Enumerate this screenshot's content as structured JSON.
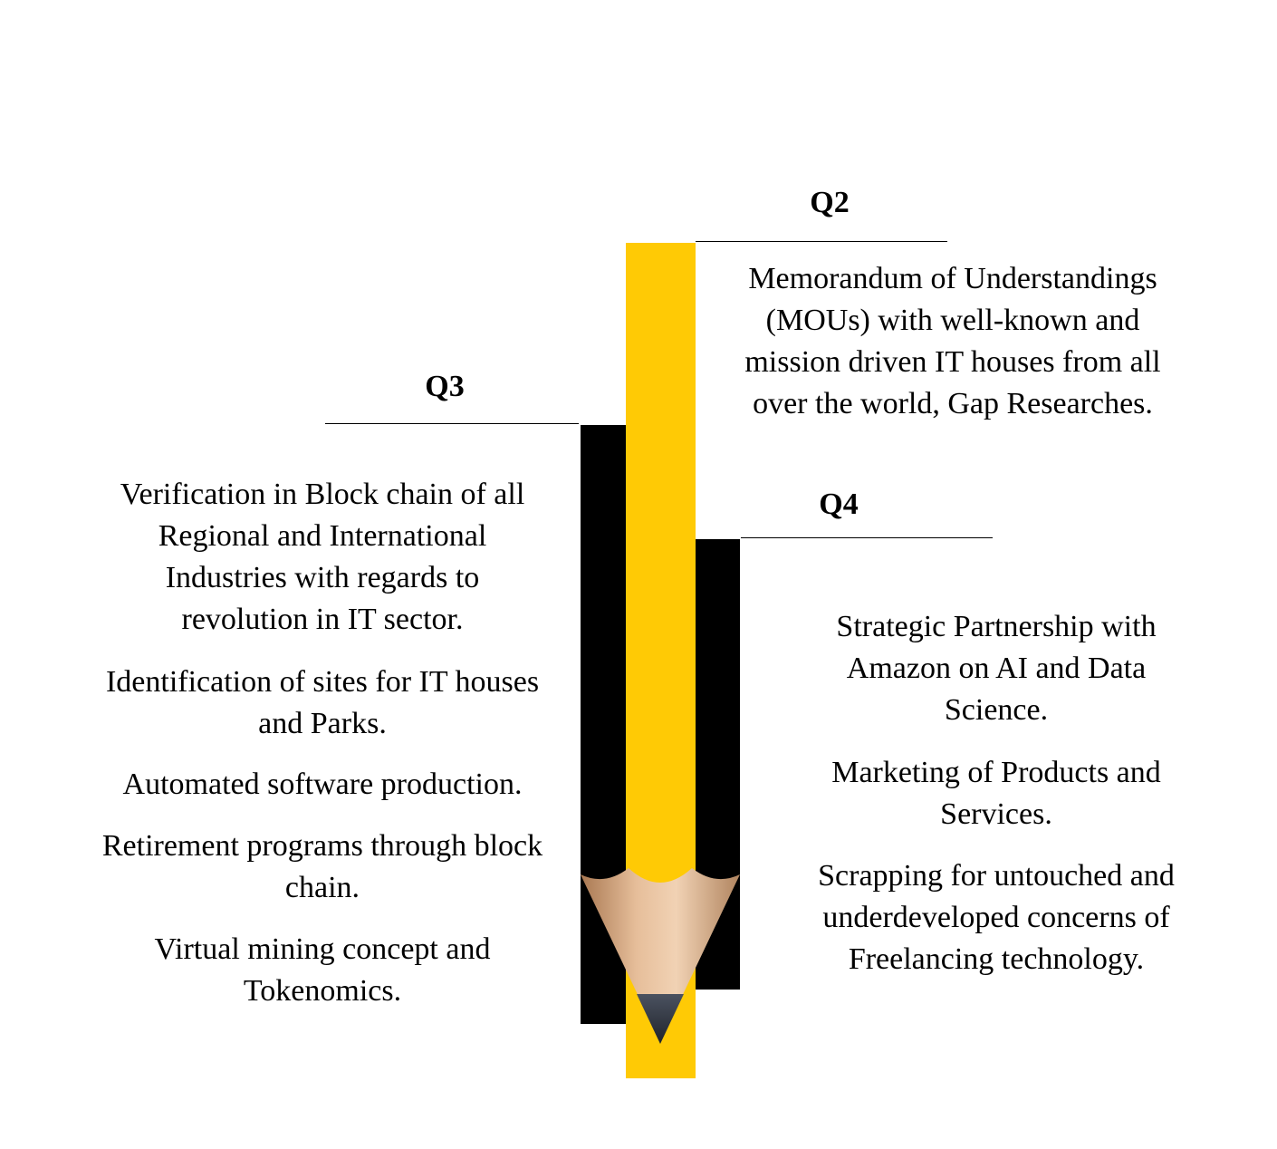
{
  "colors": {
    "pencil_body": "#FFCA05",
    "pencil_wood": "#E6BE9A",
    "pencil_lead": "#3A404C",
    "bars": "#000000"
  },
  "sections": {
    "q2": {
      "label": "Q2",
      "text": "Memorandum of Understandings (MOUs) with well-known and mission driven IT houses from all over the world, Gap Researches."
    },
    "q3": {
      "label": "Q3",
      "items": [
        "Verification in Block chain of all Regional and International Industries with regards to revolution in IT sector.",
        "Identification of sites for IT houses and Parks.",
        "Automated software production.",
        "Retirement programs through block chain.",
        "Virtual mining concept and Tokenomics."
      ]
    },
    "q4": {
      "label": "Q4",
      "items": [
        "Strategic Partnership with Amazon on AI and Data Science.",
        "Marketing of Products and Services.",
        "Scrapping for untouched and underdeveloped concerns of Freelancing technology."
      ]
    }
  }
}
